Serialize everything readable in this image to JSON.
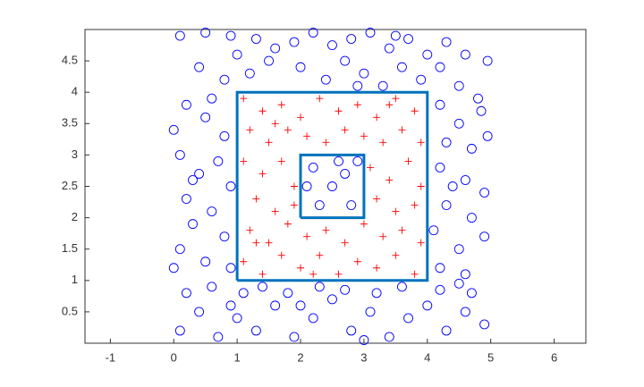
{
  "chart_data": {
    "type": "scatter",
    "xlim": [
      -1.4,
      6.5
    ],
    "ylim": [
      0,
      5
    ],
    "xticks": [
      -1,
      0,
      1,
      2,
      3,
      4,
      5,
      6
    ],
    "yticks": [
      0.5,
      1,
      1.5,
      2,
      2.5,
      3,
      3.5,
      4,
      4.5
    ],
    "series": [
      {
        "marker": "circle",
        "color": "#0000ff",
        "x": [
          0.1,
          0.5,
          0.9,
          1.3,
          1.6,
          1.9,
          2.2,
          2.5,
          2.8,
          3.1,
          3.4,
          3.7,
          4.0,
          4.3,
          4.6,
          4.95,
          0.4,
          0.8,
          1.2,
          1.5,
          2.0,
          2.4,
          2.7,
          3.0,
          3.3,
          3.6,
          3.9,
          4.2,
          4.5,
          1.0,
          2.9,
          3.5,
          0.1,
          0.4,
          0.7,
          1.0,
          1.3,
          1.6,
          1.9,
          2.2,
          2.5,
          2.8,
          3.1,
          3.4,
          3.7,
          4.0,
          4.3,
          4.6,
          4.9,
          0.2,
          0.6,
          1.1,
          1.4,
          1.8,
          2.3,
          2.7,
          3.2,
          3.6,
          4.2,
          4.7,
          0.9,
          3.0,
          2.0,
          4.5,
          0.0,
          0.2,
          0.5,
          0.8,
          0.1,
          0.4,
          0.7,
          0.9,
          0.2,
          0.6,
          0.3,
          0.8,
          0.1,
          0.5,
          0.9,
          0.0,
          0.6,
          0.3,
          4.2,
          4.5,
          4.8,
          4.3,
          4.7,
          4.95,
          4.2,
          4.6,
          4.9,
          4.3,
          4.7,
          4.1,
          4.5,
          4.9,
          4.2,
          4.6,
          4.85,
          4.4,
          2.2,
          2.5,
          2.8,
          2.3,
          2.7,
          2.9,
          2.1,
          2.6
        ],
        "values": [
          4.9,
          4.95,
          4.9,
          4.85,
          4.7,
          4.8,
          4.95,
          4.75,
          4.85,
          4.95,
          4.7,
          4.85,
          4.6,
          4.8,
          4.6,
          4.5,
          4.4,
          4.2,
          4.3,
          4.5,
          4.4,
          4.2,
          4.5,
          4.3,
          4.1,
          4.4,
          4.2,
          4.4,
          4.1,
          4.6,
          4.1,
          4.9,
          0.2,
          0.5,
          0.1,
          0.4,
          0.2,
          0.6,
          0.1,
          0.4,
          0.7,
          0.2,
          0.5,
          0.1,
          0.4,
          0.6,
          0.2,
          0.5,
          0.3,
          0.8,
          0.9,
          0.8,
          0.9,
          0.8,
          0.9,
          0.85,
          0.8,
          0.9,
          0.85,
          0.8,
          0.6,
          0.05,
          0.6,
          0.95,
          3.4,
          3.8,
          3.6,
          3.3,
          3.0,
          2.7,
          2.9,
          2.5,
          2.3,
          2.1,
          1.9,
          1.7,
          1.5,
          1.3,
          1.2,
          1.2,
          3.9,
          2.6,
          3.8,
          3.5,
          3.9,
          3.2,
          3.1,
          3.3,
          2.8,
          2.6,
          2.4,
          2.2,
          2.0,
          1.8,
          1.5,
          1.7,
          1.2,
          1.1,
          3.7,
          2.5,
          2.8,
          2.5,
          2.2,
          2.2,
          2.7,
          2.9,
          2.5,
          2.9
        ]
      },
      {
        "marker": "plus",
        "color": "#ff0000",
        "x": [
          1.1,
          1.4,
          1.7,
          2.0,
          2.3,
          2.6,
          2.9,
          3.2,
          3.5,
          3.8,
          1.2,
          1.5,
          1.8,
          2.1,
          2.4,
          2.7,
          3.0,
          3.3,
          3.6,
          3.9,
          1.1,
          1.4,
          1.7,
          1.9,
          3.1,
          3.4,
          3.7,
          3.9,
          1.3,
          1.6,
          1.9,
          3.2,
          3.5,
          3.8,
          1.2,
          1.5,
          1.8,
          2.1,
          2.4,
          2.7,
          3.0,
          3.3,
          3.6,
          3.9,
          1.1,
          1.4,
          1.7,
          2.0,
          2.3,
          2.6,
          2.9,
          3.2,
          3.5,
          3.8,
          1.3,
          2.2,
          3.4,
          1.6
        ],
        "values": [
          3.9,
          3.7,
          3.8,
          3.6,
          3.9,
          3.7,
          3.8,
          3.6,
          3.9,
          3.7,
          3.4,
          3.2,
          3.4,
          3.3,
          3.2,
          3.4,
          3.3,
          3.2,
          3.4,
          3.2,
          2.9,
          2.7,
          2.9,
          2.5,
          2.8,
          2.6,
          2.9,
          2.5,
          2.3,
          2.1,
          2.2,
          2.3,
          2.1,
          2.2,
          1.8,
          1.6,
          1.9,
          1.7,
          1.8,
          1.6,
          1.9,
          1.7,
          1.8,
          1.6,
          1.3,
          1.1,
          1.4,
          1.2,
          1.4,
          1.1,
          1.3,
          1.2,
          1.4,
          1.1,
          1.6,
          1.1,
          3.8,
          3.5
        ]
      },
      {
        "marker": "line",
        "color": "#0072bd",
        "x": [
          1,
          4,
          4,
          1,
          1
        ],
        "values": [
          1,
          1,
          4,
          4,
          1
        ]
      },
      {
        "marker": "line",
        "color": "#0072bd",
        "x": [
          2,
          3,
          3,
          2,
          2
        ],
        "values": [
          2,
          2,
          3,
          3,
          2
        ]
      }
    ]
  }
}
